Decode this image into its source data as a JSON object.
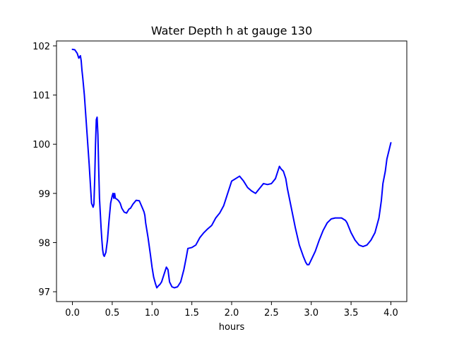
{
  "chart_data": {
    "type": "line",
    "title": "Water Depth h at gauge 130",
    "xlabel": "hours",
    "ylabel": "",
    "xlim": [
      -0.2,
      4.2
    ],
    "ylim": [
      96.8,
      102.1
    ],
    "x_ticks": [
      0.0,
      0.5,
      1.0,
      1.5,
      2.0,
      2.5,
      3.0,
      3.5,
      4.0
    ],
    "x_tick_labels": [
      "0.0",
      "0.5",
      "1.0",
      "1.5",
      "2.0",
      "2.5",
      "3.0",
      "3.5",
      "4.0"
    ],
    "y_ticks": [
      97,
      98,
      99,
      100,
      101,
      102
    ],
    "y_tick_labels": [
      "97",
      "98",
      "99",
      "100",
      "101",
      "102"
    ],
    "grid": false,
    "colors": {
      "line": "#0000ff",
      "axes": "#000000",
      "background": "#ffffff"
    },
    "series": [
      {
        "x": [
          0.0,
          0.03,
          0.06,
          0.08,
          0.1,
          0.11,
          0.12,
          0.13,
          0.15,
          0.18,
          0.21,
          0.24,
          0.26,
          0.27,
          0.28,
          0.29,
          0.3,
          0.31,
          0.32,
          0.33,
          0.34,
          0.35,
          0.36,
          0.37,
          0.38,
          0.39,
          0.4,
          0.42,
          0.44,
          0.46,
          0.48,
          0.5,
          0.51,
          0.52,
          0.53,
          0.54,
          0.56,
          0.58,
          0.6,
          0.62,
          0.65,
          0.68,
          0.71,
          0.73,
          0.76,
          0.8,
          0.84,
          0.88,
          0.9,
          0.91,
          0.92,
          0.95,
          0.98,
          1.0,
          1.02,
          1.04,
          1.06,
          1.08,
          1.1,
          1.12,
          1.15,
          1.18,
          1.2,
          1.22,
          1.25,
          1.28,
          1.32,
          1.36,
          1.4,
          1.43,
          1.45,
          1.5,
          1.55,
          1.6,
          1.65,
          1.7,
          1.75,
          1.8,
          1.85,
          1.9,
          1.92,
          1.95,
          1.98,
          2.0,
          2.05,
          2.1,
          2.15,
          2.2,
          2.25,
          2.3,
          2.35,
          2.4,
          2.45,
          2.5,
          2.55,
          2.58,
          2.6,
          2.62,
          2.65,
          2.68,
          2.7,
          2.75,
          2.8,
          2.85,
          2.9,
          2.93,
          2.95,
          2.97,
          3.0,
          3.05,
          3.1,
          3.15,
          3.2,
          3.25,
          3.3,
          3.35,
          3.38,
          3.4,
          3.43,
          3.45,
          3.5,
          3.55,
          3.6,
          3.65,
          3.7,
          3.75,
          3.8,
          3.85,
          3.88,
          3.9,
          3.93,
          3.95,
          4.0
        ],
        "y": [
          101.93,
          101.92,
          101.85,
          101.75,
          101.8,
          101.7,
          101.5,
          101.35,
          101.0,
          100.3,
          99.6,
          98.8,
          98.72,
          98.78,
          99.3,
          100.0,
          100.5,
          100.55,
          100.2,
          99.5,
          98.9,
          98.6,
          98.3,
          98.05,
          97.85,
          97.75,
          97.72,
          97.8,
          98.05,
          98.45,
          98.8,
          98.95,
          99.0,
          98.9,
          99.0,
          98.9,
          98.88,
          98.85,
          98.8,
          98.7,
          98.62,
          98.6,
          98.68,
          98.7,
          98.78,
          98.86,
          98.85,
          98.7,
          98.62,
          98.55,
          98.4,
          98.1,
          97.75,
          97.5,
          97.3,
          97.18,
          97.08,
          97.12,
          97.15,
          97.2,
          97.35,
          97.5,
          97.45,
          97.2,
          97.1,
          97.08,
          97.1,
          97.2,
          97.45,
          97.7,
          97.88,
          97.9,
          97.95,
          98.1,
          98.2,
          98.28,
          98.35,
          98.5,
          98.6,
          98.75,
          98.85,
          99.0,
          99.15,
          99.25,
          99.3,
          99.35,
          99.25,
          99.12,
          99.05,
          99.0,
          99.1,
          99.2,
          99.18,
          99.2,
          99.3,
          99.45,
          99.55,
          99.5,
          99.45,
          99.3,
          99.1,
          98.7,
          98.3,
          97.95,
          97.72,
          97.6,
          97.55,
          97.55,
          97.65,
          97.82,
          98.05,
          98.25,
          98.4,
          98.48,
          98.5,
          98.5,
          98.5,
          98.48,
          98.45,
          98.4,
          98.2,
          98.05,
          97.95,
          97.92,
          97.95,
          98.05,
          98.2,
          98.5,
          98.85,
          99.2,
          99.45,
          99.7,
          100.03
        ]
      }
    ]
  }
}
